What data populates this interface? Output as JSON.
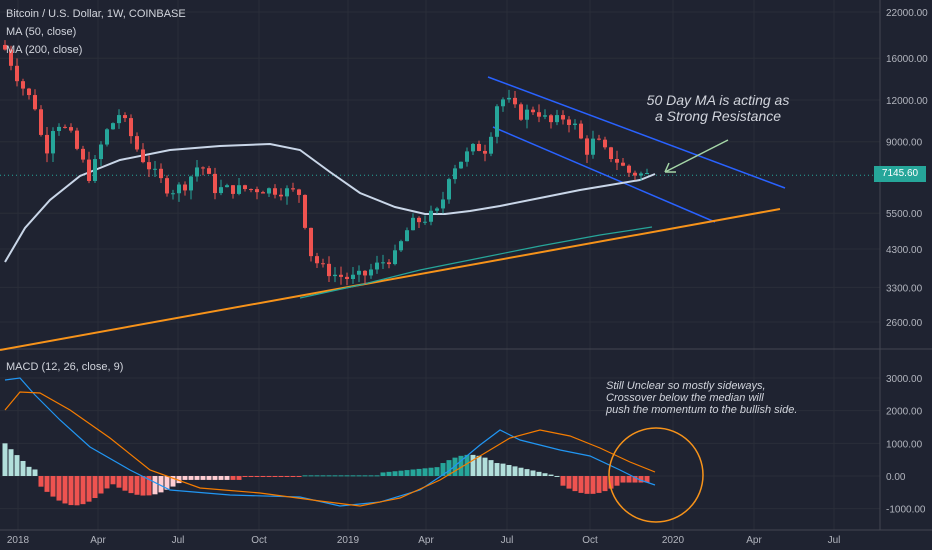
{
  "header": {
    "title": "Bitcoin / U.S. Dollar, 1W, COINBASE",
    "ma50": "MA (50, close)",
    "ma200": "MA (200, close)",
    "macd": "MACD (12, 26, close, 9)"
  },
  "annotations": {
    "resistance_line1": "50 Day MA is acting as",
    "resistance_line2": "a Strong Resistance",
    "macd_note_line1": "Still Unclear so mostly sideways,",
    "macd_note_line2": "Crossover below the median will",
    "macd_note_line3": "push the momentum to the bullish side."
  },
  "current_price": "7145.60",
  "colors": {
    "background": "#1f2331",
    "up": "#26a69a",
    "down": "#ef5350",
    "ma50": "#c9d6e8",
    "ma200": "#26a69a",
    "channel": "#2962ff",
    "trendline": "#f7931a",
    "macd": "#2196f3",
    "signal": "#f57c00",
    "circle": "#f7931a"
  },
  "chart_data": [
    {
      "type": "candlestick",
      "title": "Bitcoin / U.S. Dollar, 1W, COINBASE",
      "price_axis_ticks": [
        "22000.00",
        "16000.00",
        "12000.00",
        "9000.00",
        "7145.60",
        "5500.00",
        "4300.00",
        "3300.00",
        "2600.00"
      ],
      "log_scale": true,
      "time_axis_ticks": [
        "2018",
        "Apr",
        "Jul",
        "Oct",
        "2019",
        "Apr",
        "Jul",
        "Oct",
        "2020",
        "Apr",
        "Jul"
      ],
      "last_price": 7145.6
    },
    {
      "type": "macd",
      "title": "MACD (12, 26, close, 9)",
      "y_axis_ticks": [
        "3000.00",
        "2000.00",
        "1000.00",
        "0.00",
        "-1000.00"
      ],
      "ylim": [
        -1100,
        3200
      ]
    }
  ]
}
